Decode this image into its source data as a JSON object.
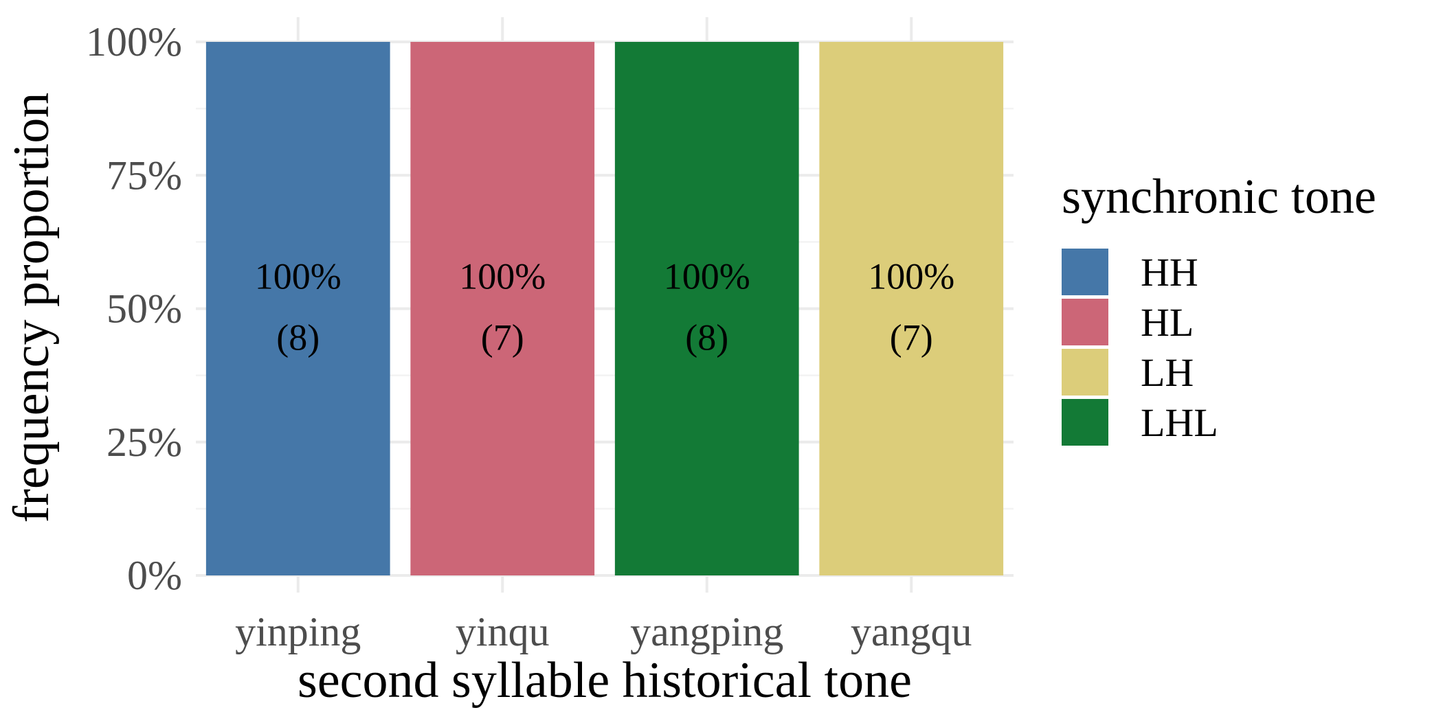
{
  "chart_data": {
    "type": "bar",
    "stacked": true,
    "title": "",
    "xlabel": "second syllable historical tone",
    "ylabel": "frequency proportion",
    "categories": [
      "yinping",
      "yinqu",
      "yangping",
      "yangqu"
    ],
    "ylim": [
      0,
      1
    ],
    "yticks": [
      0,
      0.25,
      0.5,
      0.75,
      1
    ],
    "ytick_labels": [
      "0%",
      "25%",
      "50%",
      "75%",
      "100%"
    ],
    "grid": true,
    "legend": {
      "title": "synchronic tone",
      "placement": "right",
      "entries": [
        {
          "name": "HH",
          "color": "#4577a8"
        },
        {
          "name": "HL",
          "color": "#cc6677"
        },
        {
          "name": "LH",
          "color": "#dccd7a"
        },
        {
          "name": "LHL",
          "color": "#137a36"
        }
      ]
    },
    "bars": [
      {
        "category": "yinping",
        "tone": "HH",
        "proportion": 1.0,
        "percent_label": "100%",
        "count_label": "(8)",
        "color": "#4577a8"
      },
      {
        "category": "yinqu",
        "tone": "HL",
        "proportion": 1.0,
        "percent_label": "100%",
        "count_label": "(7)",
        "color": "#cc6677"
      },
      {
        "category": "yangping",
        "tone": "LHL",
        "proportion": 1.0,
        "percent_label": "100%",
        "count_label": "(8)",
        "color": "#137a36"
      },
      {
        "category": "yangqu",
        "tone": "LH",
        "proportion": 1.0,
        "percent_label": "100%",
        "count_label": "(7)",
        "color": "#dccd7a"
      }
    ]
  }
}
